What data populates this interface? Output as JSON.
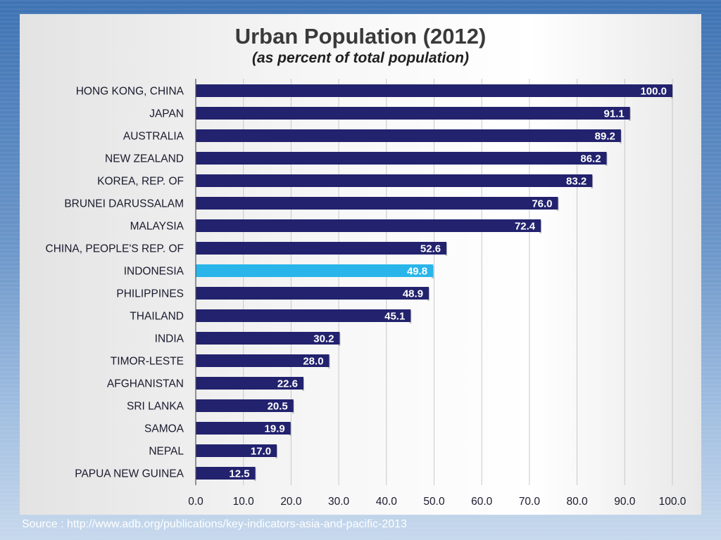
{
  "chart_data": {
    "type": "bar",
    "orientation": "horizontal",
    "title": "Urban Population (2012)",
    "subtitle": "(as percent of total population)",
    "categories": [
      "HONG KONG, CHINA",
      "JAPAN",
      "AUSTRALIA",
      "NEW ZEALAND",
      "KOREA, REP. OF",
      "BRUNEI DARUSSALAM",
      "MALAYSIA",
      "CHINA, PEOPLE'S REP. OF",
      "INDONESIA",
      "PHILIPPINES",
      "THAILAND",
      "INDIA",
      "TIMOR-LESTE",
      "AFGHANISTAN",
      "SRI LANKA",
      "SAMOA",
      "NEPAL",
      "PAPUA NEW GUINEA"
    ],
    "values": [
      100.0,
      91.1,
      89.2,
      86.2,
      83.2,
      76.0,
      72.4,
      52.6,
      49.8,
      48.9,
      45.1,
      30.2,
      28.0,
      22.6,
      20.5,
      19.9,
      17.0,
      12.5
    ],
    "xlim": [
      0,
      100
    ],
    "xticks": [
      "0.0",
      "10.0",
      "20.0",
      "30.0",
      "40.0",
      "50.0",
      "60.0",
      "70.0",
      "80.0",
      "90.0",
      "100.0"
    ],
    "highlight": "INDONESIA",
    "grid": true,
    "colors": {
      "bar": "#22226e",
      "highlight": "#29b5ea",
      "label": "#ffffff"
    }
  },
  "footer": {
    "source": "Source : http://www.adb.org/publications/key-indicators-asia-and-pacific-2013"
  }
}
